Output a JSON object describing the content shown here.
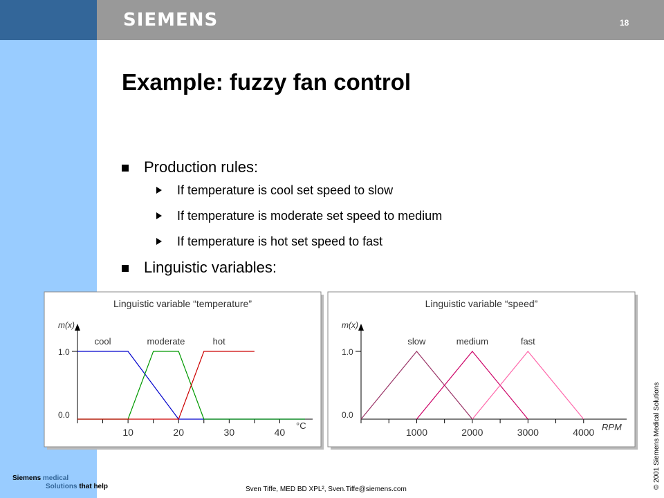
{
  "header": {
    "brand": "SIEMENS",
    "page_number": "18"
  },
  "title": "Example: fuzzy fan control",
  "bullets": {
    "production_rules": "Production rules:",
    "rules": [
      "If temperature is cool set speed to slow",
      "If temperature is moderate set speed to medium",
      "If temperature is hot set speed to fast"
    ],
    "linguistic_variables": "Linguistic variables:"
  },
  "footer": {
    "brand_line1_a": "Siemens",
    "brand_line1_b": " medical",
    "brand_line2_a": "Solutions",
    "brand_line2_b": " that help",
    "author": "Sven Tiffe, MED BD XPL², Sven.Tiffe@siemens.com",
    "copyright": "© 2001 Siemens Medical Solutions"
  },
  "chart_data": [
    {
      "type": "line",
      "title": "Linguistic variable “temperature”",
      "ylabel": "m(x)",
      "xlabel": "°C",
      "y_ticks": [
        "1.0",
        "0.0"
      ],
      "x_ticks": [
        10,
        20,
        30,
        40
      ],
      "xlim": [
        0,
        45
      ],
      "ylim": [
        0,
        1
      ],
      "series": [
        {
          "name": "cool",
          "color": "#0000cc",
          "points": [
            [
              0,
              1
            ],
            [
              10,
              1
            ],
            [
              20,
              0
            ],
            [
              45,
              0
            ]
          ]
        },
        {
          "name": "moderate",
          "color": "#009900",
          "points": [
            [
              0,
              0
            ],
            [
              10,
              0
            ],
            [
              15,
              1
            ],
            [
              20,
              1
            ],
            [
              25,
              0
            ],
            [
              45,
              0
            ]
          ]
        },
        {
          "name": "hot",
          "color": "#cc0000",
          "points": [
            [
              0,
              0
            ],
            [
              20,
              0
            ],
            [
              25,
              1
            ],
            [
              35,
              1
            ]
          ]
        }
      ]
    },
    {
      "type": "line",
      "title": "Linguistic variable “speed”",
      "ylabel": "m(x)",
      "xlabel": "RPM",
      "y_ticks": [
        "1.0",
        "0.0"
      ],
      "x_ticks": [
        1000,
        2000,
        3000,
        4000
      ],
      "xlim": [
        0,
        4500
      ],
      "ylim": [
        0,
        1
      ],
      "series": [
        {
          "name": "slow",
          "color": "#993366",
          "points": [
            [
              0,
              0
            ],
            [
              1000,
              1
            ],
            [
              2000,
              0
            ]
          ]
        },
        {
          "name": "medium",
          "color": "#cc0066",
          "points": [
            [
              1000,
              0
            ],
            [
              2000,
              1
            ],
            [
              3000,
              0
            ]
          ]
        },
        {
          "name": "fast",
          "color": "#ff66aa",
          "points": [
            [
              2000,
              0
            ],
            [
              3000,
              1
            ],
            [
              4000,
              0
            ]
          ]
        }
      ]
    }
  ]
}
